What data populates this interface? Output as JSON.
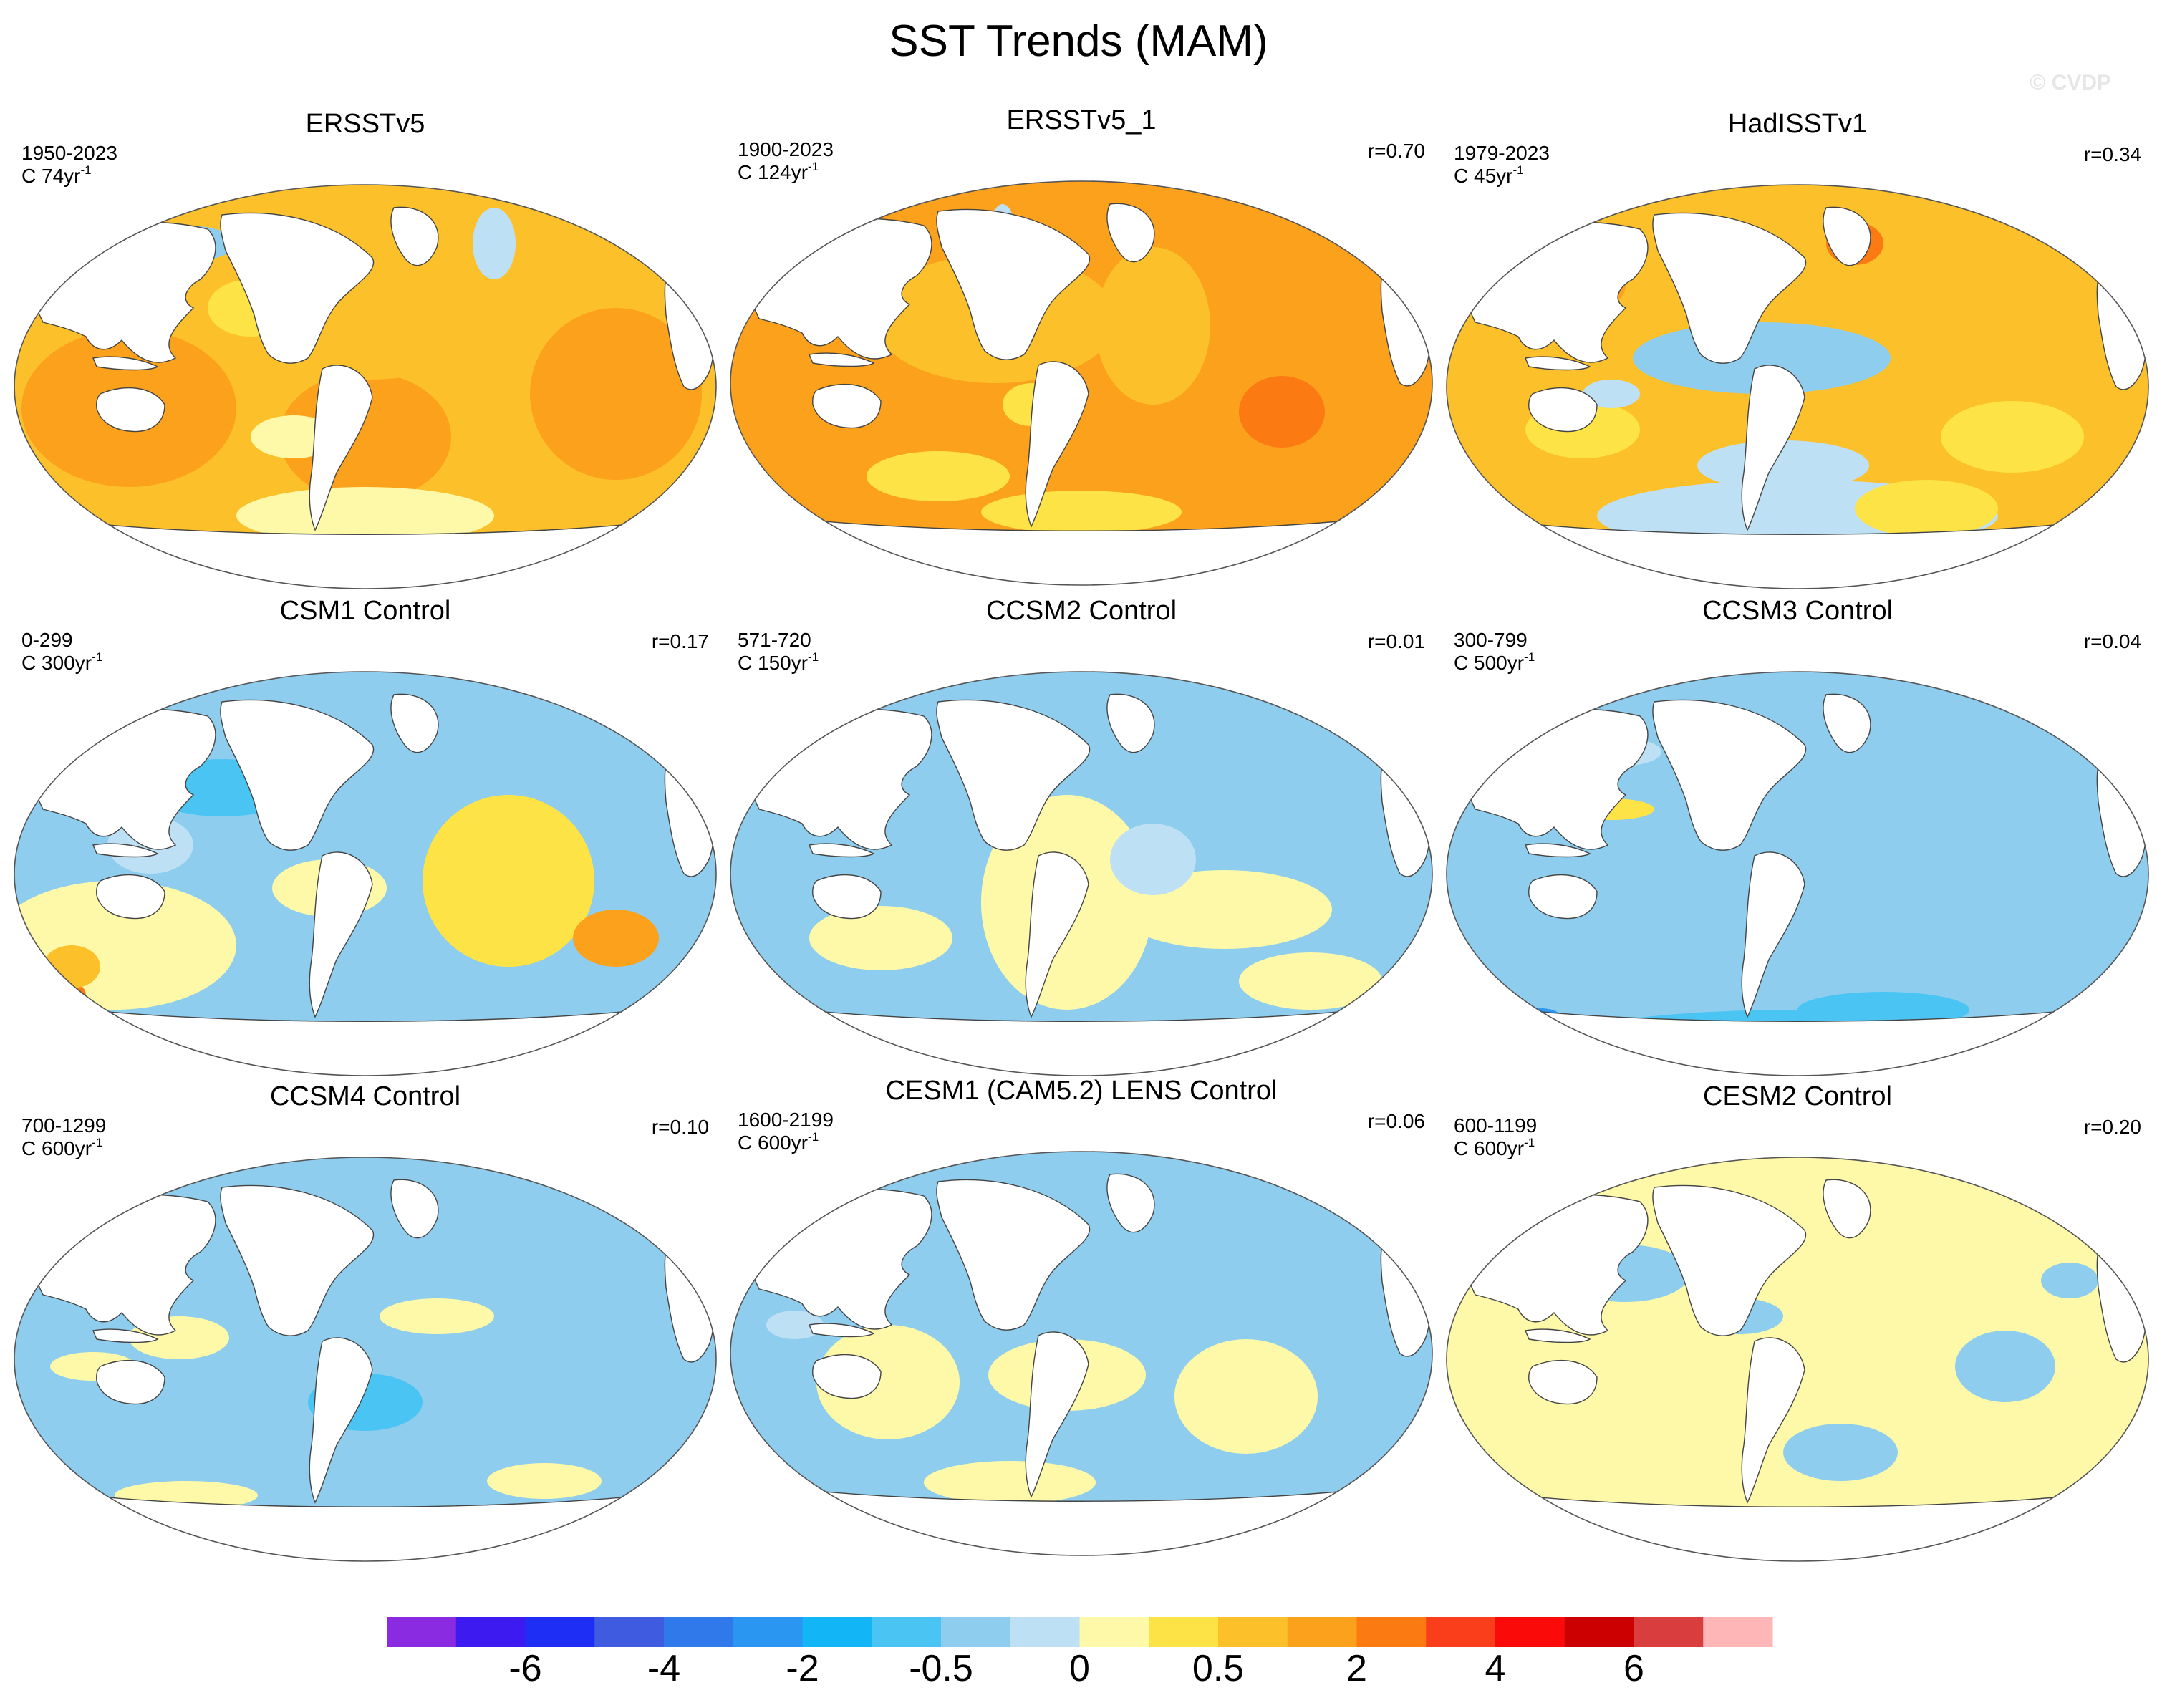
{
  "figure": {
    "title": "SST Trends (MAM)",
    "watermark": "© CVDP"
  },
  "panels": [
    {
      "title": "ERSSTv5",
      "period": "1950-2023",
      "scale_prefix": "C 74yr",
      "scale_exp": "-1",
      "corr": "",
      "pattern": "obs_a"
    },
    {
      "title": "ERSSTv5_1",
      "period": "1900-2023",
      "scale_prefix": "C 124yr",
      "scale_exp": "-1",
      "corr": "r=0.70",
      "pattern": "obs_b"
    },
    {
      "title": "HadISSTv1",
      "period": "1979-2023",
      "scale_prefix": "C 45yr",
      "scale_exp": "-1",
      "corr": "r=0.34",
      "pattern": "obs_c"
    },
    {
      "title": "CSM1 Control",
      "period": "0-299",
      "scale_prefix": "C 300yr",
      "scale_exp": "-1",
      "corr": "r=0.17",
      "pattern": "csm1"
    },
    {
      "title": "CCSM2 Control",
      "period": "571-720",
      "scale_prefix": "C 150yr",
      "scale_exp": "-1",
      "corr": "r=0.01",
      "pattern": "ccsm2"
    },
    {
      "title": "CCSM3 Control",
      "period": "300-799",
      "scale_prefix": "C 500yr",
      "scale_exp": "-1",
      "corr": "r=0.04",
      "pattern": "ccsm3"
    },
    {
      "title": "CCSM4 Control",
      "period": "700-1299",
      "scale_prefix": "C 600yr",
      "scale_exp": "-1",
      "corr": "r=0.10",
      "pattern": "ccsm4"
    },
    {
      "title": "CESM1 (CAM5.2) LENS Control",
      "period": "1600-2199",
      "scale_prefix": "C 600yr",
      "scale_exp": "-1",
      "corr": "r=0.06",
      "pattern": "cesm1"
    },
    {
      "title": "CESM2 Control",
      "period": "600-1199",
      "scale_prefix": "C 600yr",
      "scale_exp": "-1",
      "corr": "r=0.20",
      "pattern": "cesm2"
    }
  ],
  "colorbar": {
    "colors": [
      "#8a2be2",
      "#3d1af0",
      "#1e2ef5",
      "#3f5ce0",
      "#2f79ea",
      "#2a96f2",
      "#12b5f6",
      "#4ac5f3",
      "#8ecdee",
      "#bde0f4",
      "#fdf9a8",
      "#fde345",
      "#fcc02a",
      "#fca11b",
      "#fb7a12",
      "#fa3e1c",
      "#fb0a0a",
      "#cc0000",
      "#d93d3d",
      "#feb6b6"
    ],
    "labels": [
      "-6",
      "-4",
      "-2",
      "-0.5",
      "0",
      "0.5",
      "2",
      "4",
      "6"
    ],
    "label_boundaries": [
      2,
      4,
      6,
      8,
      10,
      12,
      14,
      16,
      18
    ]
  }
}
